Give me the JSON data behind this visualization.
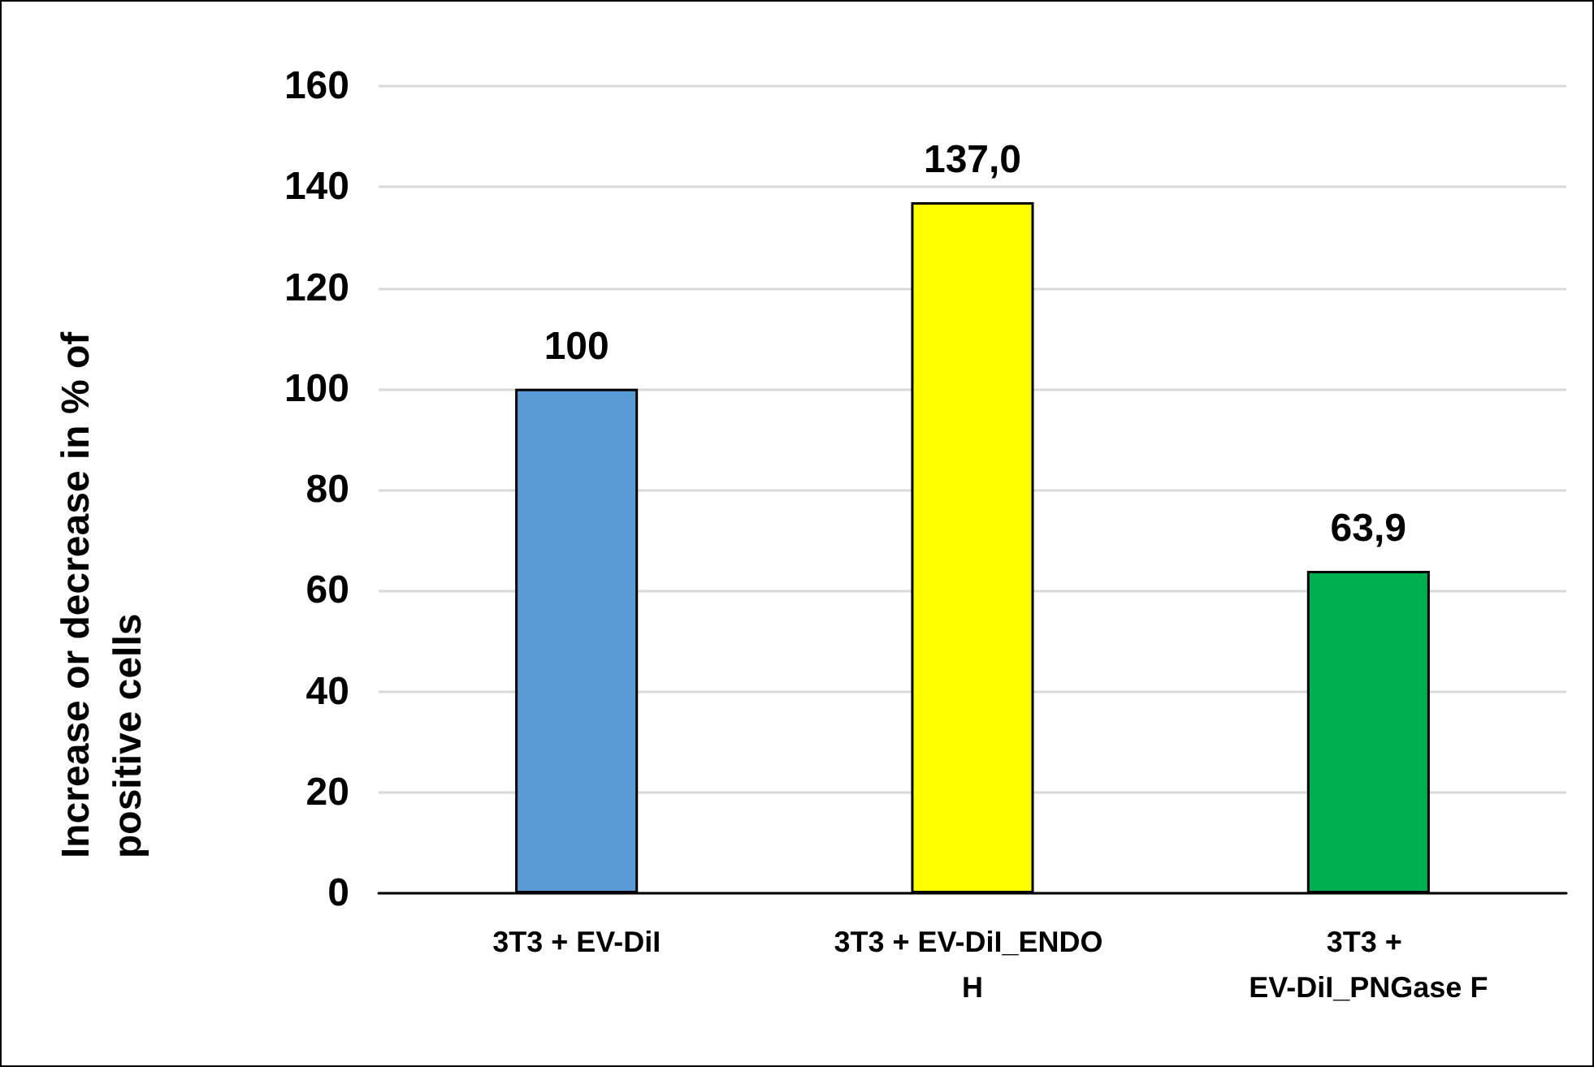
{
  "chart_data": {
    "type": "bar",
    "ylabel": "Increase or decrease in % of positive cells",
    "categories": [
      "3T3 + EV-DiI",
      "3T3 + EV-DiI_ENDO H",
      "3T3 + EV-DiI_PNGase F"
    ],
    "values": [
      100,
      137.0,
      63.9
    ],
    "value_labels": [
      "100",
      "137,0",
      "63,9"
    ],
    "colors": [
      "#5b9bd5",
      "#ffff00",
      "#00b050"
    ],
    "ylim": [
      0,
      160
    ],
    "yticks": [
      0,
      20,
      40,
      60,
      80,
      100,
      120,
      140,
      160
    ],
    "grid": "y"
  }
}
